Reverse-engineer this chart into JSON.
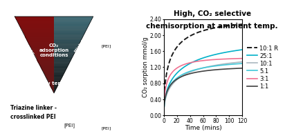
{
  "title": "High, CO₂ selective\nchemisorption at ambient temp.",
  "xlabel": "Time (mins)",
  "ylabel": "CO₂ sorption mmol/g",
  "xlim": [
    0,
    120
  ],
  "ylim": [
    0.0,
    2.4
  ],
  "yticks": [
    0.0,
    0.4,
    0.8,
    1.2,
    1.6,
    2.0,
    2.4
  ],
  "xticks": [
    0,
    20,
    40,
    60,
    80,
    100,
    120
  ],
  "series": [
    {
      "label": "10:1 R",
      "color": "#1a1a1a",
      "linestyle": "--",
      "linewidth": 1.4,
      "a": 2.38,
      "b": 0.28
    },
    {
      "label": "25:1",
      "color": "#00b0c8",
      "linestyle": "-",
      "linewidth": 1.2,
      "a": 1.9,
      "b": 0.18
    },
    {
      "label": "10:1",
      "color": "#aab8c0",
      "linestyle": "-",
      "linewidth": 1.2,
      "a": 1.5,
      "b": 0.2
    },
    {
      "label": "5.1",
      "color": "#40c8d8",
      "linestyle": "-",
      "linewidth": 1.2,
      "a": 1.38,
      "b": 0.25
    },
    {
      "label": "3:1",
      "color": "#f07090",
      "linestyle": "-",
      "linewidth": 1.2,
      "a": 1.44,
      "b": 0.38
    },
    {
      "label": "1:1",
      "color": "#404040",
      "linestyle": "-",
      "linewidth": 1.2,
      "a": 1.22,
      "b": 0.3
    }
  ],
  "background_color": "#ffffff",
  "title_fontsize": 7.5,
  "axis_fontsize": 6.5,
  "tick_fontsize": 5.5,
  "legend_fontsize": 6.0,
  "left_bg": "#ffffff",
  "triangle_colors": {
    "top_left": "#cc0000",
    "top_right": "#80d8e8",
    "bottom": "#e06010"
  },
  "triangle_text": {
    "low_co2": "Low CO₂ conc.",
    "high_humidity": "High humidity",
    "co2_adsorption": "CO₂\nadsorption\nconditions",
    "low_temp": "Low temp."
  },
  "bottom_text_left": "Triazine linker -\ncrosslinked PEI",
  "pei_label": "[PEI]"
}
